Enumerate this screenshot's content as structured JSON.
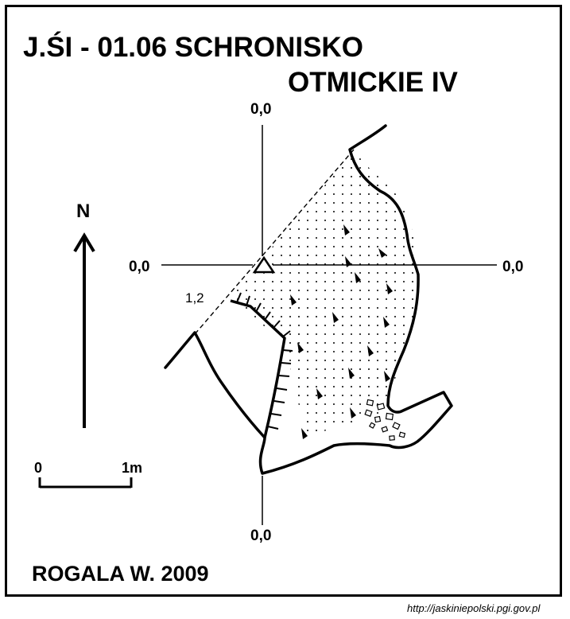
{
  "title": {
    "line1": "J.ŚI - 01.06  SCHRONISKO",
    "line2": "OTMICKIE IV"
  },
  "axis_labels": {
    "top": "0,0",
    "bottom": "0,0",
    "left": "0,0",
    "right": "0,0"
  },
  "depth_label": "1,2",
  "north_label": "N",
  "scale": {
    "start": "0",
    "end": "1m"
  },
  "author": "ROGALA W. 2009",
  "source": "http://jaskiniepolski.pgi.gov.pl",
  "colors": {
    "ink": "#000000",
    "paper": "#ffffff"
  },
  "icons": {
    "entrance_point": "triangle-marker",
    "north": "north-arrow"
  }
}
